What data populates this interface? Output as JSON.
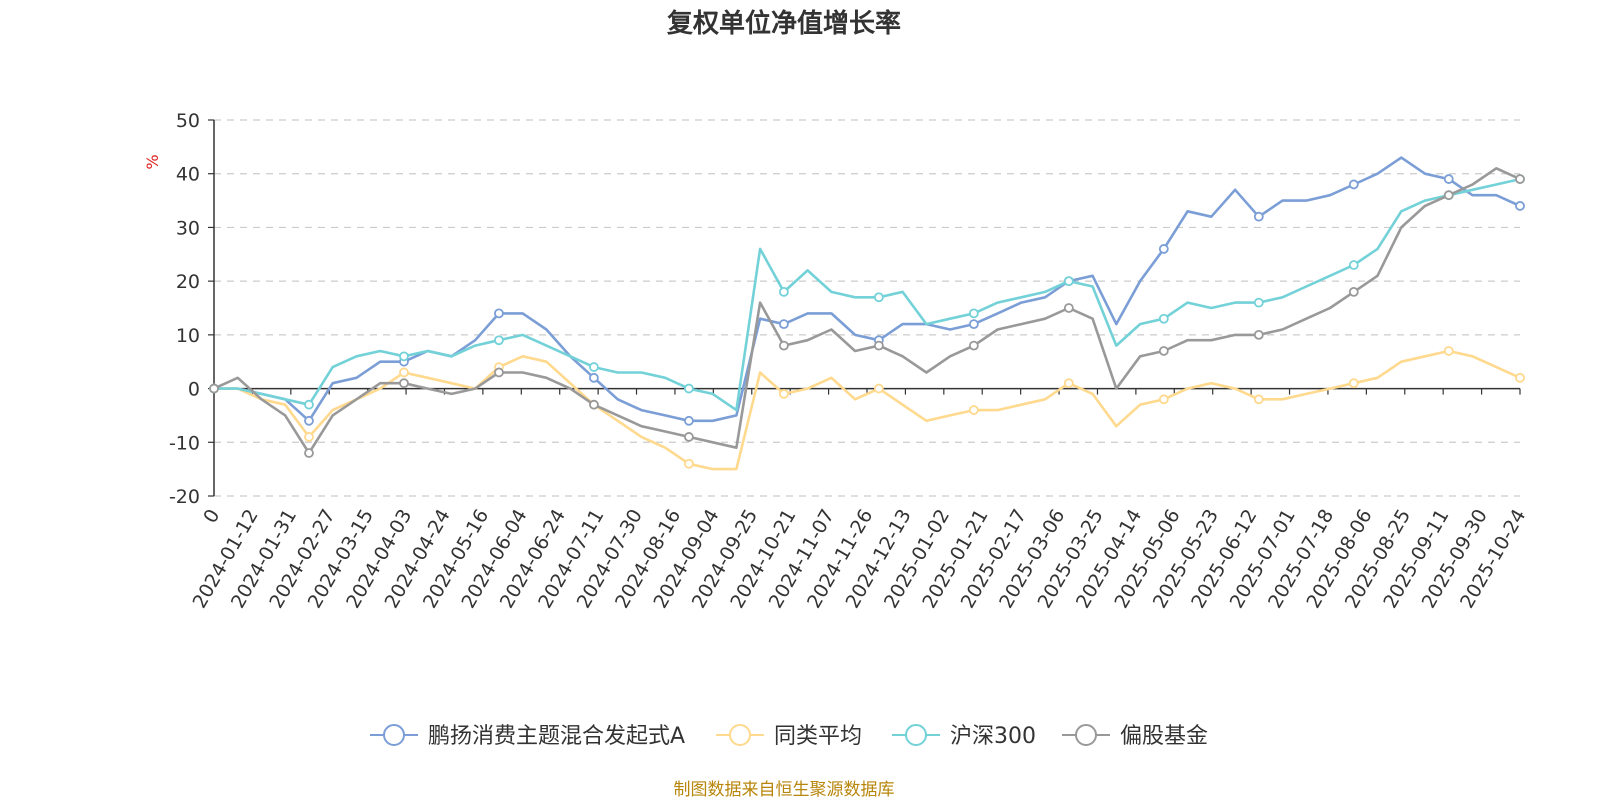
{
  "chart_data": {
    "type": "line",
    "title": "复权单位净值增长率",
    "ylabel": "%",
    "ylim": [
      -20,
      50
    ],
    "yticks": [
      -20,
      -10,
      0,
      10,
      20,
      30,
      40,
      50
    ],
    "grid": true,
    "legend_position": "bottom",
    "x_tick_labels": [
      "0",
      "2024-01-12",
      "2024-01-31",
      "2024-02-27",
      "2024-03-15",
      "2024-04-03",
      "2024-04-24",
      "2024-05-16",
      "2024-06-04",
      "2024-06-24",
      "2024-07-11",
      "2024-07-30",
      "2024-08-16",
      "2024-09-04",
      "2024-09-25",
      "2024-10-21",
      "2024-11-07",
      "2024-11-26",
      "2024-12-13",
      "2025-01-02",
      "2025-01-21",
      "2025-02-17",
      "2025-03-06",
      "2025-03-25",
      "2025-04-14",
      "2025-05-06",
      "2025-05-23",
      "2025-06-12",
      "2025-07-01",
      "2025-07-18",
      "2025-08-06",
      "2025-08-25",
      "2025-09-11",
      "2025-09-30",
      "2025-10-24"
    ],
    "source": "制图数据来自恒生聚源数据库",
    "series": [
      {
        "name": "鹏扬消费主题混合发起式A",
        "color": "#7b9ed6",
        "values": [
          0,
          0,
          -1,
          -2,
          -6,
          1,
          2,
          5,
          5,
          7,
          6,
          9,
          14,
          14,
          11,
          6,
          2,
          -2,
          -4,
          -5,
          -6,
          -6,
          -5,
          13,
          12,
          14,
          14,
          10,
          9,
          12,
          12,
          11,
          12,
          14,
          16,
          17,
          20,
          21,
          12,
          20,
          26,
          33,
          32,
          37,
          32,
          35,
          35,
          36,
          38,
          40,
          43,
          40,
          39,
          36,
          36,
          34
        ]
      },
      {
        "name": "同类平均",
        "color": "#ffd98e",
        "values": [
          0,
          0,
          -2,
          -3,
          -9,
          -4,
          -2,
          0,
          3,
          2,
          1,
          0,
          4,
          6,
          5,
          1,
          -3,
          -6,
          -9,
          -11,
          -14,
          -15,
          -15,
          3,
          -1,
          0,
          2,
          -2,
          0,
          -3,
          -6,
          -5,
          -4,
          -4,
          -3,
          -2,
          1,
          -1,
          -7,
          -3,
          -2,
          0,
          1,
          0,
          -2,
          -2,
          -1,
          0,
          1,
          2,
          5,
          6,
          7,
          6,
          4,
          2
        ]
      },
      {
        "name": "沪深300",
        "color": "#73d1d8",
        "values": [
          0,
          0,
          -1,
          -2,
          -3,
          4,
          6,
          7,
          6,
          7,
          6,
          8,
          9,
          10,
          8,
          6,
          4,
          3,
          3,
          2,
          0,
          -1,
          -4,
          26,
          18,
          22,
          18,
          17,
          17,
          18,
          12,
          13,
          14,
          16,
          17,
          18,
          20,
          19,
          8,
          12,
          13,
          16,
          15,
          16,
          16,
          17,
          19,
          21,
          23,
          26,
          33,
          35,
          36,
          37,
          38,
          39
        ]
      },
      {
        "name": "偏股基金",
        "color": "#999999",
        "values": [
          0,
          2,
          -2,
          -5,
          -12,
          -5,
          -2,
          1,
          1,
          0,
          -1,
          0,
          3,
          3,
          2,
          0,
          -3,
          -5,
          -7,
          -8,
          -9,
          -10,
          -11,
          16,
          8,
          9,
          11,
          7,
          8,
          6,
          3,
          6,
          8,
          11,
          12,
          13,
          15,
          13,
          0,
          6,
          7,
          9,
          9,
          10,
          10,
          11,
          13,
          15,
          18,
          21,
          30,
          34,
          36,
          38,
          41,
          39
        ]
      }
    ]
  }
}
